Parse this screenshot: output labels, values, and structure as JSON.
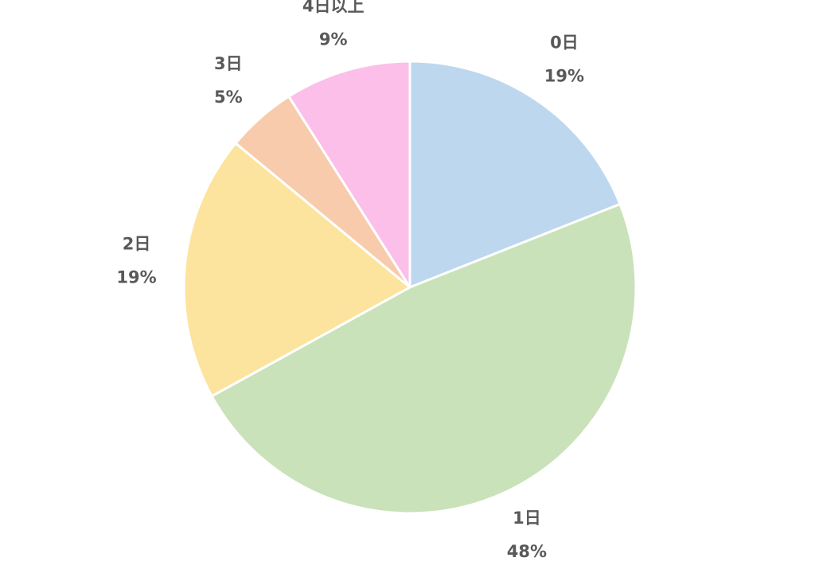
{
  "chart_data": {
    "type": "pie",
    "categories": [
      "0日",
      "1日",
      "2日",
      "3日",
      "4日以上"
    ],
    "values": [
      19,
      48,
      19,
      5,
      9
    ],
    "value_labels": [
      "19%",
      "48%",
      "19%",
      "5%",
      "9%"
    ],
    "colors": [
      "#bdd7ee",
      "#c9e2b9",
      "#fde49e",
      "#f8cbad",
      "#fcbfe9"
    ]
  }
}
